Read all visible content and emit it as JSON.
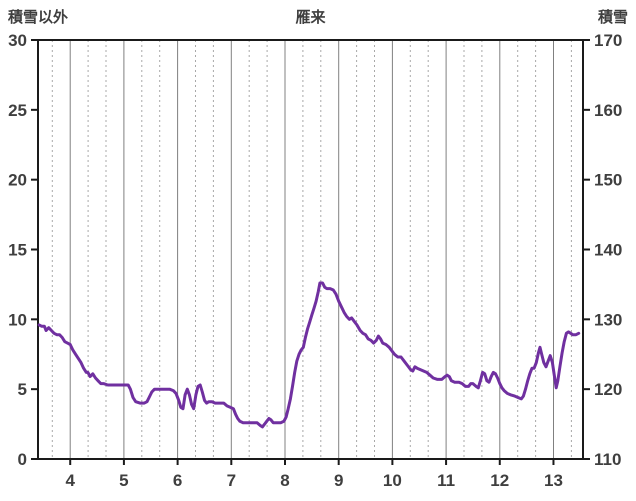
{
  "header": {
    "left_axis_title": "積雪以外",
    "chart_title": "雁来",
    "right_axis_title": "積雪"
  },
  "chart_data": {
    "type": "line",
    "title": "雁来",
    "left_axis_label": "積雪以外",
    "right_axis_label": "積雪",
    "xlabel": "",
    "legend": "none",
    "grid": "vertical-only",
    "left_ticks": [
      0,
      5,
      10,
      15,
      20,
      25,
      30
    ],
    "right_ticks": [
      110,
      120,
      130,
      140,
      150,
      160,
      170
    ],
    "x_ticks": [
      4,
      5,
      6,
      7,
      8,
      9,
      10,
      11,
      12,
      13
    ],
    "x_range": [
      3.4,
      13.55
    ],
    "left_range": [
      0,
      30
    ],
    "right_range": [
      110,
      170
    ],
    "grid_minor_interval": 0.3333,
    "colors": {
      "line": "#7030A0",
      "frame": "#1a1a1a",
      "grid_major": "#808080",
      "grid_minor": "#a8a8a8",
      "text": "#3f3f3f"
    },
    "series": [
      {
        "name": "積雪以外",
        "axis": "left",
        "points": [
          [
            3.42,
            9.6
          ],
          [
            3.47,
            9.5
          ],
          [
            3.52,
            9.5
          ],
          [
            3.55,
            9.2
          ],
          [
            3.6,
            9.4
          ],
          [
            3.65,
            9.2
          ],
          [
            3.7,
            9.0
          ],
          [
            3.75,
            8.9
          ],
          [
            3.8,
            8.9
          ],
          [
            3.85,
            8.7
          ],
          [
            3.9,
            8.4
          ],
          [
            3.95,
            8.3
          ],
          [
            4.0,
            8.2
          ],
          [
            4.05,
            7.8
          ],
          [
            4.1,
            7.5
          ],
          [
            4.15,
            7.2
          ],
          [
            4.2,
            6.9
          ],
          [
            4.25,
            6.5
          ],
          [
            4.3,
            6.2
          ],
          [
            4.33,
            6.2
          ],
          [
            4.37,
            5.9
          ],
          [
            4.42,
            6.1
          ],
          [
            4.47,
            5.8
          ],
          [
            4.52,
            5.6
          ],
          [
            4.57,
            5.4
          ],
          [
            4.62,
            5.4
          ],
          [
            4.7,
            5.3
          ],
          [
            4.8,
            5.3
          ],
          [
            4.9,
            5.3
          ],
          [
            5.0,
            5.3
          ],
          [
            5.08,
            5.3
          ],
          [
            5.12,
            5.0
          ],
          [
            5.17,
            4.4
          ],
          [
            5.22,
            4.1
          ],
          [
            5.3,
            4.0
          ],
          [
            5.38,
            4.0
          ],
          [
            5.43,
            4.1
          ],
          [
            5.47,
            4.4
          ],
          [
            5.52,
            4.8
          ],
          [
            5.57,
            5.0
          ],
          [
            5.65,
            5.0
          ],
          [
            5.75,
            5.0
          ],
          [
            5.85,
            5.0
          ],
          [
            5.92,
            4.9
          ],
          [
            5.97,
            4.7
          ],
          [
            6.02,
            4.2
          ],
          [
            6.06,
            3.7
          ],
          [
            6.1,
            3.6
          ],
          [
            6.14,
            4.6
          ],
          [
            6.18,
            5.0
          ],
          [
            6.22,
            4.6
          ],
          [
            6.26,
            3.9
          ],
          [
            6.3,
            3.6
          ],
          [
            6.34,
            4.6
          ],
          [
            6.38,
            5.2
          ],
          [
            6.42,
            5.3
          ],
          [
            6.46,
            4.8
          ],
          [
            6.5,
            4.2
          ],
          [
            6.54,
            4.0
          ],
          [
            6.58,
            4.1
          ],
          [
            6.64,
            4.1
          ],
          [
            6.7,
            4.0
          ],
          [
            6.78,
            4.0
          ],
          [
            6.86,
            4.0
          ],
          [
            6.92,
            3.8
          ],
          [
            6.98,
            3.7
          ],
          [
            7.04,
            3.6
          ],
          [
            7.08,
            3.2
          ],
          [
            7.12,
            2.9
          ],
          [
            7.16,
            2.7
          ],
          [
            7.22,
            2.6
          ],
          [
            7.3,
            2.6
          ],
          [
            7.4,
            2.6
          ],
          [
            7.48,
            2.6
          ],
          [
            7.54,
            2.4
          ],
          [
            7.58,
            2.3
          ],
          [
            7.62,
            2.5
          ],
          [
            7.66,
            2.7
          ],
          [
            7.7,
            2.9
          ],
          [
            7.74,
            2.8
          ],
          [
            7.78,
            2.6
          ],
          [
            7.84,
            2.6
          ],
          [
            7.92,
            2.6
          ],
          [
            7.98,
            2.7
          ],
          [
            8.02,
            3.0
          ],
          [
            8.06,
            3.6
          ],
          [
            8.1,
            4.3
          ],
          [
            8.14,
            5.2
          ],
          [
            8.18,
            6.2
          ],
          [
            8.22,
            7.0
          ],
          [
            8.26,
            7.5
          ],
          [
            8.3,
            7.8
          ],
          [
            8.34,
            8.0
          ],
          [
            8.38,
            8.7
          ],
          [
            8.42,
            9.3
          ],
          [
            8.46,
            9.8
          ],
          [
            8.5,
            10.3
          ],
          [
            8.54,
            10.8
          ],
          [
            8.58,
            11.3
          ],
          [
            8.62,
            12.0
          ],
          [
            8.65,
            12.6
          ],
          [
            8.7,
            12.6
          ],
          [
            8.74,
            12.3
          ],
          [
            8.78,
            12.2
          ],
          [
            8.84,
            12.2
          ],
          [
            8.9,
            12.1
          ],
          [
            8.95,
            11.8
          ],
          [
            9.0,
            11.3
          ],
          [
            9.05,
            10.9
          ],
          [
            9.1,
            10.5
          ],
          [
            9.15,
            10.2
          ],
          [
            9.2,
            10.0
          ],
          [
            9.24,
            10.1
          ],
          [
            9.28,
            9.9
          ],
          [
            9.34,
            9.6
          ],
          [
            9.4,
            9.2
          ],
          [
            9.45,
            9.0
          ],
          [
            9.5,
            8.9
          ],
          [
            9.55,
            8.6
          ],
          [
            9.6,
            8.5
          ],
          [
            9.65,
            8.3
          ],
          [
            9.7,
            8.5
          ],
          [
            9.74,
            8.8
          ],
          [
            9.78,
            8.6
          ],
          [
            9.82,
            8.3
          ],
          [
            9.88,
            8.2
          ],
          [
            9.94,
            8.0
          ],
          [
            9.98,
            7.8
          ],
          [
            10.04,
            7.5
          ],
          [
            10.1,
            7.3
          ],
          [
            10.16,
            7.3
          ],
          [
            10.22,
            7.0
          ],
          [
            10.28,
            6.7
          ],
          [
            10.34,
            6.4
          ],
          [
            10.38,
            6.3
          ],
          [
            10.42,
            6.6
          ],
          [
            10.46,
            6.5
          ],
          [
            10.52,
            6.4
          ],
          [
            10.58,
            6.3
          ],
          [
            10.64,
            6.2
          ],
          [
            10.7,
            6.0
          ],
          [
            10.76,
            5.8
          ],
          [
            10.84,
            5.7
          ],
          [
            10.92,
            5.7
          ],
          [
            10.98,
            5.9
          ],
          [
            11.02,
            6.0
          ],
          [
            11.06,
            5.9
          ],
          [
            11.1,
            5.6
          ],
          [
            11.16,
            5.5
          ],
          [
            11.24,
            5.5
          ],
          [
            11.3,
            5.4
          ],
          [
            11.36,
            5.2
          ],
          [
            11.42,
            5.2
          ],
          [
            11.46,
            5.4
          ],
          [
            11.5,
            5.4
          ],
          [
            11.56,
            5.2
          ],
          [
            11.6,
            5.1
          ],
          [
            11.64,
            5.6
          ],
          [
            11.68,
            6.2
          ],
          [
            11.72,
            6.1
          ],
          [
            11.76,
            5.6
          ],
          [
            11.8,
            5.5
          ],
          [
            11.84,
            5.9
          ],
          [
            11.88,
            6.2
          ],
          [
            11.92,
            6.1
          ],
          [
            11.96,
            5.8
          ],
          [
            12.0,
            5.4
          ],
          [
            12.04,
            5.1
          ],
          [
            12.08,
            4.9
          ],
          [
            12.14,
            4.7
          ],
          [
            12.2,
            4.6
          ],
          [
            12.28,
            4.5
          ],
          [
            12.34,
            4.4
          ],
          [
            12.4,
            4.3
          ],
          [
            12.44,
            4.5
          ],
          [
            12.48,
            5.0
          ],
          [
            12.52,
            5.6
          ],
          [
            12.56,
            6.1
          ],
          [
            12.6,
            6.5
          ],
          [
            12.64,
            6.5
          ],
          [
            12.68,
            6.9
          ],
          [
            12.72,
            7.6
          ],
          [
            12.75,
            8.0
          ],
          [
            12.78,
            7.5
          ],
          [
            12.82,
            6.9
          ],
          [
            12.86,
            6.6
          ],
          [
            12.9,
            7.0
          ],
          [
            12.94,
            7.4
          ],
          [
            12.98,
            6.9
          ],
          [
            13.02,
            5.9
          ],
          [
            13.05,
            5.1
          ],
          [
            13.08,
            5.6
          ],
          [
            13.12,
            6.6
          ],
          [
            13.16,
            7.6
          ],
          [
            13.2,
            8.4
          ],
          [
            13.24,
            9.0
          ],
          [
            13.28,
            9.1
          ],
          [
            13.32,
            9.0
          ],
          [
            13.36,
            8.9
          ],
          [
            13.42,
            8.9
          ],
          [
            13.47,
            9.0
          ]
        ]
      }
    ]
  }
}
